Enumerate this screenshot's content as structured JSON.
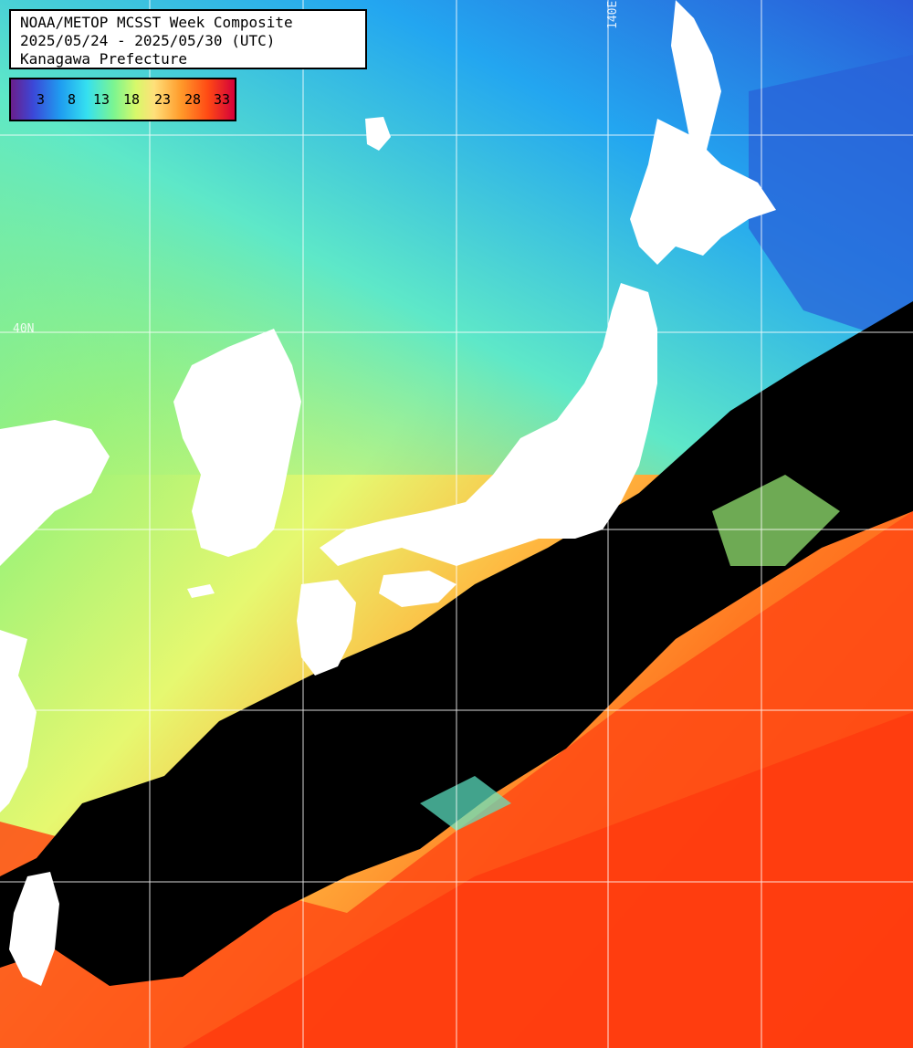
{
  "header": {
    "title": "NOAA/METOP MCSST Week Composite",
    "date_range": "2025/05/24 - 2025/05/30 (UTC)",
    "region": "Kanagawa Prefecture"
  },
  "legend": {
    "ticks": [
      "3",
      "8",
      "13",
      "18",
      "23",
      "28",
      "33"
    ],
    "colors": [
      "#6a1f8c",
      "#3b48d8",
      "#1f9cf0",
      "#35e0f0",
      "#7cf590",
      "#d8f86a",
      "#ffe07a",
      "#ff9a2a",
      "#ff4a14",
      "#d4003a"
    ]
  },
  "grid_labels": {
    "lon": "140E",
    "lat": "40N"
  },
  "colors": {
    "land": "#ffffff",
    "cloud": "#000000",
    "warm_sea": "#ff4a14",
    "cool_sea": "#7cf590",
    "cold_sea": "#1f9cf0"
  }
}
